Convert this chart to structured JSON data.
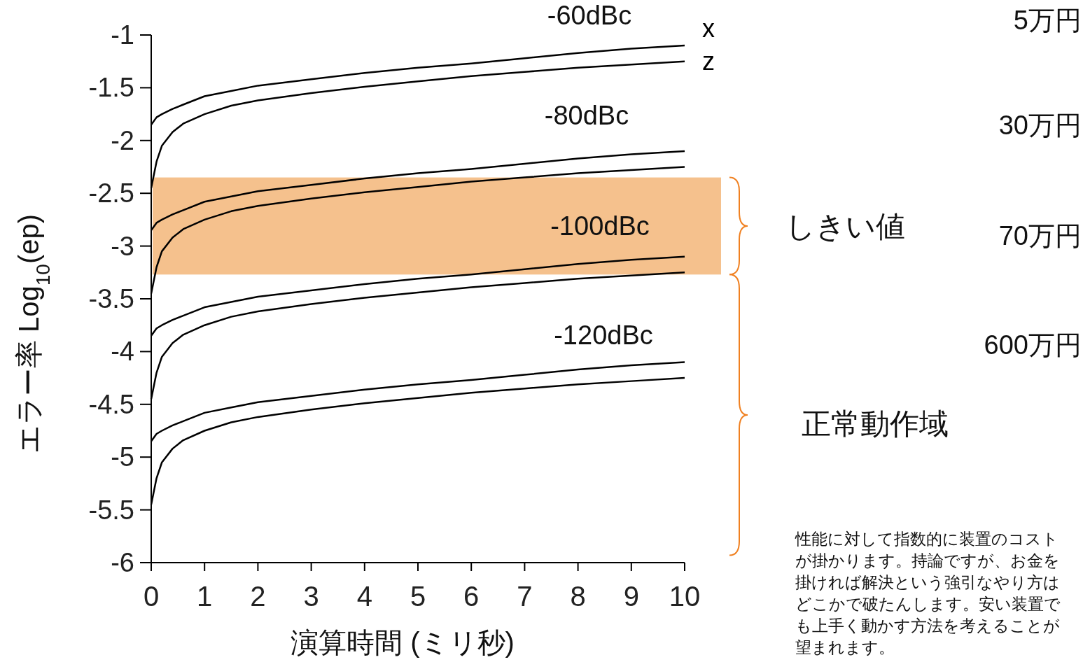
{
  "chart_data": {
    "type": "line",
    "xlabel": "演算時間 (ミリ秒)",
    "ylabel": "エラー率 Log$_{10}$(ep)",
    "xlim": [
      0,
      10
    ],
    "ylim": [
      -6,
      -1
    ],
    "xticks": [
      0,
      1,
      2,
      3,
      4,
      5,
      6,
      7,
      8,
      9,
      10
    ],
    "yticks": [
      -1,
      -1.5,
      -2,
      -2.5,
      -3,
      -3.5,
      -4,
      -4.5,
      -5,
      -5.5,
      -6
    ],
    "grid": false,
    "x": [
      0,
      0.1,
      0.2,
      0.4,
      0.6,
      1,
      1.5,
      2,
      3,
      4,
      5,
      6,
      7,
      8,
      9,
      10
    ],
    "series": [
      {
        "name": "x",
        "color": "#000000",
        "values": [
          -1.85,
          -1.78,
          -1.75,
          -1.7,
          -1.66,
          -1.58,
          -1.53,
          -1.48,
          -1.42,
          -1.36,
          -1.31,
          -1.27,
          -1.22,
          -1.17,
          -1.13,
          -1.1
        ]
      },
      {
        "name": "z",
        "color": "#000000",
        "values": [
          -2.45,
          -2.2,
          -2.05,
          -1.92,
          -1.84,
          -1.75,
          -1.67,
          -1.62,
          -1.55,
          -1.49,
          -1.44,
          -1.39,
          -1.35,
          -1.31,
          -1.28,
          -1.25
        ]
      },
      {
        "color": "#000000",
        "values": [
          -2.85,
          -2.78,
          -2.75,
          -2.7,
          -2.66,
          -2.58,
          -2.53,
          -2.48,
          -2.42,
          -2.36,
          -2.31,
          -2.27,
          -2.22,
          -2.17,
          -2.13,
          -2.1
        ]
      },
      {
        "color": "#000000",
        "values": [
          -3.45,
          -3.2,
          -3.05,
          -2.92,
          -2.84,
          -2.75,
          -2.67,
          -2.62,
          -2.55,
          -2.49,
          -2.44,
          -2.39,
          -2.35,
          -2.31,
          -2.28,
          -2.25
        ]
      },
      {
        "color": "#000000",
        "values": [
          -3.85,
          -3.78,
          -3.75,
          -3.7,
          -3.66,
          -3.58,
          -3.53,
          -3.48,
          -3.42,
          -3.36,
          -3.31,
          -3.27,
          -3.22,
          -3.17,
          -3.13,
          -3.1
        ]
      },
      {
        "color": "#000000",
        "values": [
          -4.45,
          -4.2,
          -4.05,
          -3.92,
          -3.84,
          -3.75,
          -3.67,
          -3.62,
          -3.55,
          -3.49,
          -3.44,
          -3.39,
          -3.35,
          -3.31,
          -3.28,
          -3.25
        ]
      },
      {
        "color": "#000000",
        "values": [
          -4.85,
          -4.78,
          -4.75,
          -4.7,
          -4.66,
          -4.58,
          -4.53,
          -4.48,
          -4.42,
          -4.36,
          -4.31,
          -4.27,
          -4.22,
          -4.17,
          -4.13,
          -4.1
        ]
      },
      {
        "color": "#000000",
        "values": [
          -5.45,
          -5.2,
          -5.05,
          -4.92,
          -4.84,
          -4.75,
          -4.67,
          -4.62,
          -4.55,
          -4.49,
          -4.44,
          -4.39,
          -4.35,
          -4.31,
          -4.28,
          -4.25
        ]
      }
    ],
    "bands": [
      {
        "axis": "y",
        "from": -3.27,
        "to": -2.35,
        "label": "しきい値",
        "color": "#f0a050"
      }
    ],
    "annotations": [
      "-60dBc",
      "-80dBc",
      "-100dBc",
      "-120dBc",
      "正常動作域",
      "5万円",
      "30万円",
      "70万円",
      "600万円",
      "性能に対して指数的に装置のコストが掛かります。持論ですが、お金を掛ければ解決という強引なやり方はどこかで破たんします。安い装置でも上手く動かす方法を考えることが望まれます。"
    ]
  }
}
